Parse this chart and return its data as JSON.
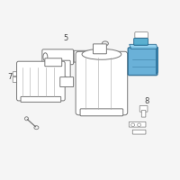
{
  "bg_color": "#f5f5f5",
  "highlight_color": "#5baad5",
  "highlight_dark": "#2a6a90",
  "highlight_light": "#85ccee",
  "line_color": "#aaaaaa",
  "dark_line": "#777777",
  "text_color": "#444444",
  "label_5": "5",
  "label_7": "7",
  "label_8": "8",
  "figsize": [
    2.0,
    2.0
  ],
  "dpi": 100
}
